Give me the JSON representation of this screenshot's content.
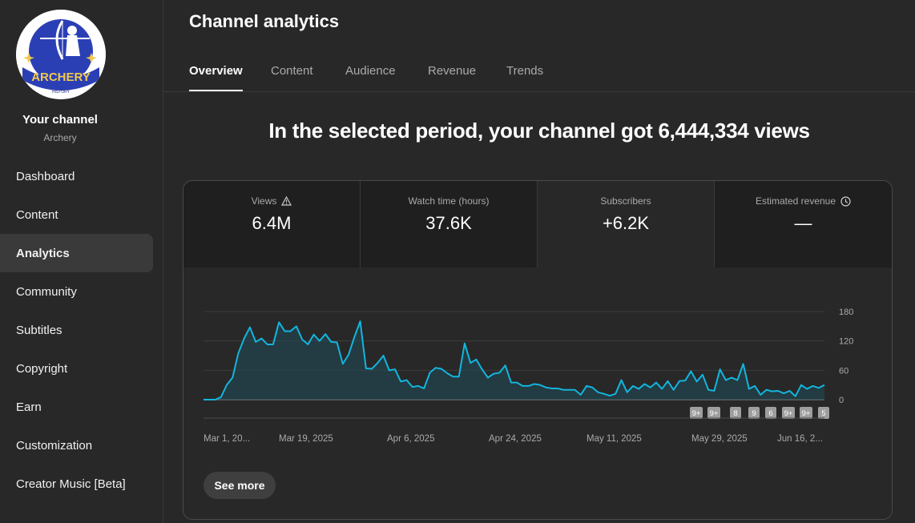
{
  "sidebar": {
    "avatar_text": "ARCHERY",
    "avatar_subtext": "HISTORY",
    "channel_title": "Your channel",
    "channel_name": "Archery",
    "items": [
      {
        "label": "Dashboard"
      },
      {
        "label": "Content"
      },
      {
        "label": "Analytics",
        "active": true
      },
      {
        "label": "Community"
      },
      {
        "label": "Subtitles"
      },
      {
        "label": "Copyright"
      },
      {
        "label": "Earn"
      },
      {
        "label": "Customization"
      },
      {
        "label": "Creator Music [Beta]"
      }
    ]
  },
  "header": {
    "title": "Channel analytics",
    "tabs": [
      {
        "label": "Overview",
        "active": true
      },
      {
        "label": "Content"
      },
      {
        "label": "Audience"
      },
      {
        "label": "Revenue"
      },
      {
        "label": "Trends"
      }
    ]
  },
  "headline": "In the selected period, your channel got 6,444,334 views",
  "metrics": [
    {
      "label": "Views",
      "value": "6.4M",
      "icon": "warning-icon",
      "selected": false
    },
    {
      "label": "Watch time (hours)",
      "value": "37.6K",
      "selected": false
    },
    {
      "label": "Subscribers",
      "value": "+6.2K",
      "selected": true
    },
    {
      "label": "Estimated revenue",
      "value": "—",
      "icon": "clock-icon",
      "selected": false
    }
  ],
  "colors": {
    "line": "#12b5de",
    "fill": "#1f4a57",
    "background": "#282828"
  },
  "chart_data": {
    "type": "area",
    "y_ticks": [
      "180",
      "120",
      "60",
      "0"
    ],
    "ylim": [
      0,
      180
    ],
    "x_tick_labels": [
      "Mar 1, 20...",
      "Mar 19, 2025",
      "Apr 6, 2025",
      "Apr 24, 2025",
      "May 11, 2025",
      "May 29, 2025",
      "Jun 16, 2..."
    ],
    "values": [
      0,
      0,
      0,
      5,
      30,
      45,
      95,
      125,
      148,
      118,
      125,
      113,
      113,
      158,
      140,
      140,
      150,
      123,
      113,
      133,
      120,
      134,
      118,
      117,
      73,
      92,
      128,
      160,
      64,
      63,
      75,
      90,
      60,
      62,
      37,
      40,
      26,
      28,
      23,
      55,
      65,
      63,
      54,
      47,
      47,
      115,
      75,
      82,
      62,
      45,
      53,
      55,
      70,
      35,
      35,
      28,
      28,
      32,
      30,
      25,
      23,
      23,
      20,
      20,
      20,
      10,
      28,
      25,
      15,
      12,
      8,
      12,
      40,
      15,
      28,
      22,
      32,
      25,
      35,
      22,
      38,
      20,
      38,
      39,
      58,
      37,
      51,
      20,
      18,
      62,
      40,
      45,
      40,
      73,
      22,
      28,
      10,
      20,
      17,
      18,
      13,
      18,
      7,
      30,
      22,
      28,
      24,
      30
    ],
    "annotation_badges": [
      "9+",
      "9+",
      "8",
      "9",
      "6",
      "9+",
      "9+",
      "5"
    ]
  },
  "actions": {
    "see_more": "See more"
  }
}
